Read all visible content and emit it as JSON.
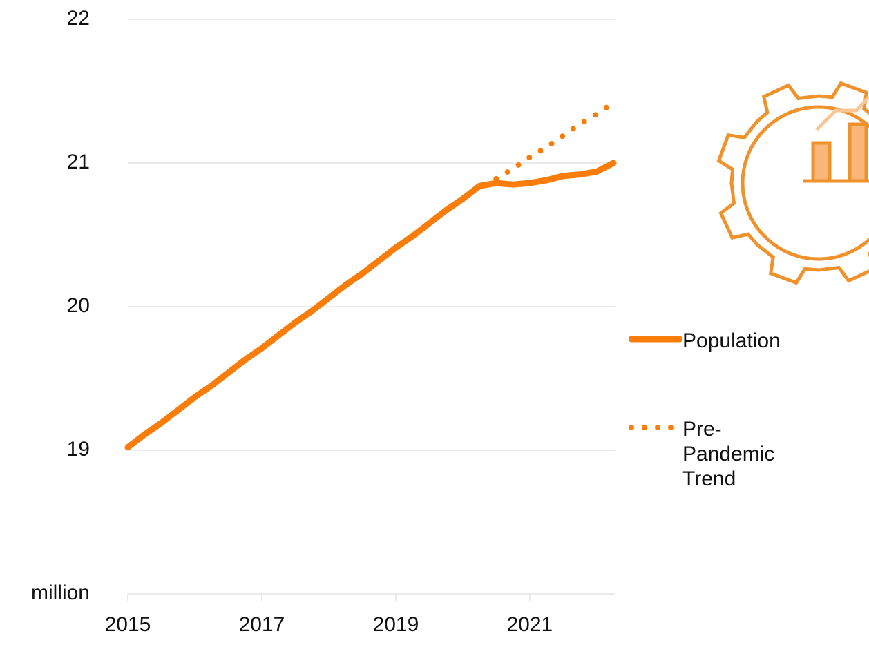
{
  "chart_data": {
    "type": "line",
    "x": [
      2015,
      2015.25,
      2015.5,
      2015.75,
      2016,
      2016.25,
      2016.5,
      2016.75,
      2017,
      2017.25,
      2017.5,
      2017.75,
      2018,
      2018.25,
      2018.5,
      2018.75,
      2019,
      2019.25,
      2019.5,
      2019.75,
      2020,
      2020.25,
      2020.5,
      2020.75,
      2021,
      2021.25,
      2021.5,
      2021.75,
      2022,
      2022.25
    ],
    "series": [
      {
        "name": "Population",
        "color": "#fa7d0a",
        "style": "solid",
        "values": [
          19.02,
          19.11,
          19.19,
          19.28,
          19.37,
          19.45,
          19.54,
          19.63,
          19.71,
          19.8,
          19.89,
          19.97,
          20.06,
          20.15,
          20.23,
          20.32,
          20.41,
          20.49,
          20.58,
          20.67,
          20.75,
          20.84,
          20.86,
          20.85,
          20.86,
          20.88,
          20.91,
          20.92,
          20.94,
          21.0
        ]
      },
      {
        "name": "Pre-Pandemic Trend",
        "color": "#fa7d0a",
        "style": "dotted",
        "values": [
          null,
          null,
          null,
          null,
          null,
          null,
          null,
          null,
          null,
          null,
          null,
          null,
          null,
          null,
          null,
          null,
          null,
          null,
          null,
          null,
          null,
          null,
          20.89,
          20.96,
          21.04,
          21.11,
          21.19,
          21.27,
          21.34,
          21.42
        ]
      }
    ],
    "xlim": [
      2015,
      2022.27
    ],
    "xticks": [
      2015,
      2017,
      2019,
      2021
    ],
    "ylim": [
      18,
      22
    ],
    "yticks": [
      {
        "value": 18,
        "label": "million"
      },
      19,
      20,
      21,
      22
    ],
    "grid": true,
    "legend": "right"
  }
}
